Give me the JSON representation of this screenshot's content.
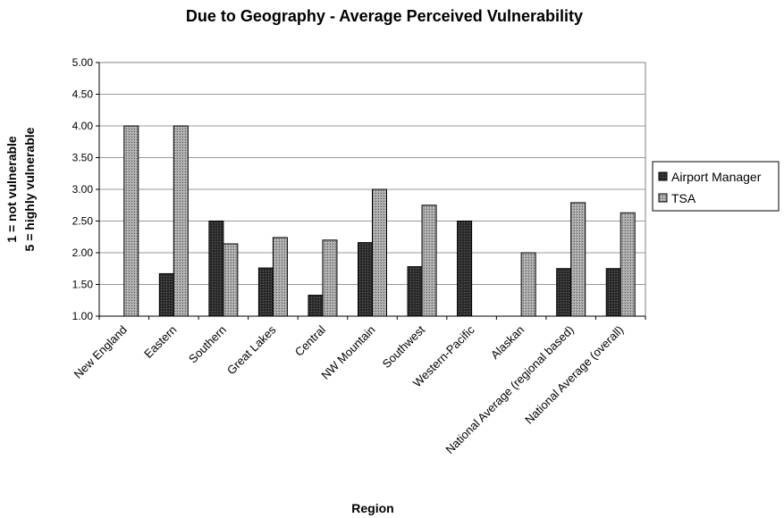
{
  "chart_data": {
    "type": "bar",
    "title": "Due to Geography - Average Perceived Vulnerability",
    "xlabel": "Region",
    "ylabel_lines": [
      "1 = not vulnerable",
      "5 = highly vulnerable"
    ],
    "ylim": [
      1.0,
      5.0
    ],
    "yticks": [
      "1.00",
      "1.50",
      "2.00",
      "2.50",
      "3.00",
      "3.50",
      "4.00",
      "4.50",
      "5.00"
    ],
    "grid": true,
    "legend_position": "right",
    "categories": [
      "New England",
      "Eastern",
      "Southern",
      "Great Lakes",
      "Central",
      "NW Mountain",
      "Southwest",
      "Western-Pacific",
      "Alaskan",
      "National Average (regional based)",
      "National Average (overall)"
    ],
    "series": [
      {
        "name": "Airport Manager",
        "color": "#333333",
        "values": [
          null,
          1.67,
          2.5,
          1.76,
          1.33,
          2.16,
          1.78,
          2.5,
          null,
          1.75,
          1.75
        ]
      },
      {
        "name": "TSA",
        "color": "#a0a0a0",
        "values": [
          4.0,
          4.0,
          2.14,
          2.24,
          2.2,
          3.0,
          2.75,
          null,
          2.0,
          2.79,
          2.63
        ]
      }
    ]
  }
}
